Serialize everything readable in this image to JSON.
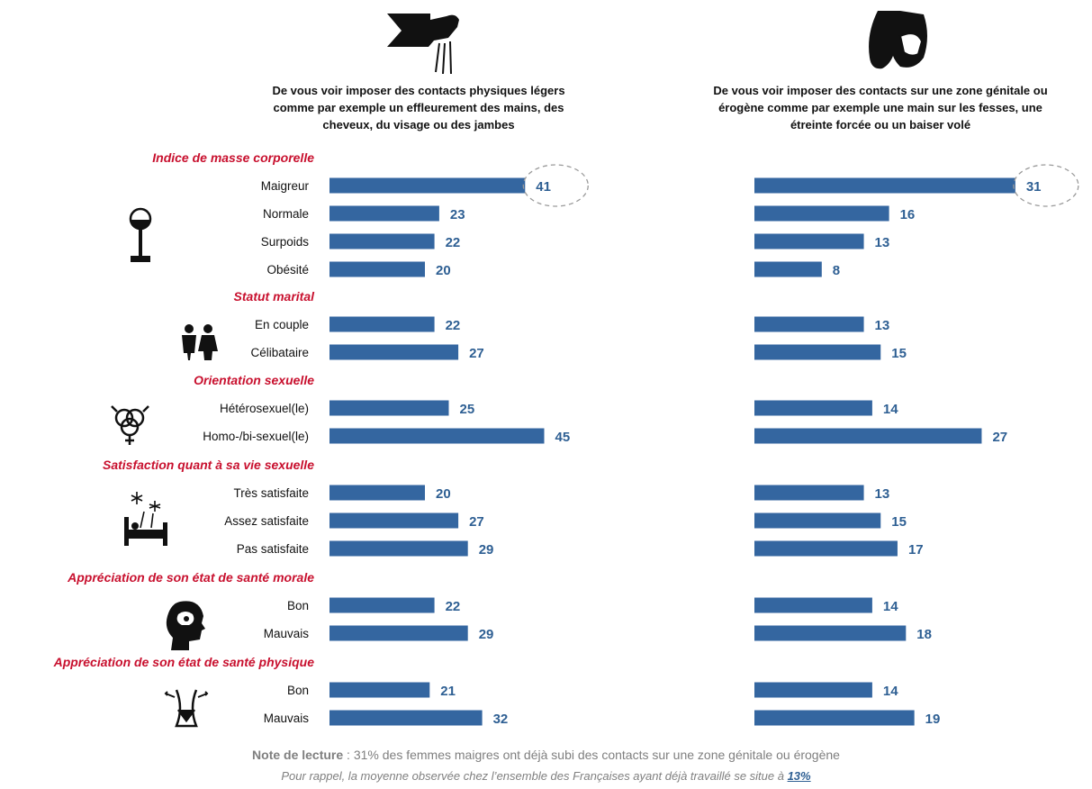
{
  "chart_data": {
    "type": "bar",
    "orientation": "horizontal",
    "panels": [
      {
        "title": [
          "De vous voir imposer des contacts physiques légers",
          "comme par exemple un effleurement des mains, des",
          "cheveux, du visage ou des jambes"
        ],
        "icon": "hand-touch-icon"
      },
      {
        "title": [
          "De vous voir imposer des contacts sur une zone génitale ou",
          "érogène comme par exemple une main sur les fesses, une",
          "étreinte forcée ou un baiser volé"
        ],
        "icon": "buttocks-hand-icon"
      }
    ],
    "groups": [
      {
        "title": "Indice de masse corporelle",
        "icon": "scale-icon",
        "rows": [
          {
            "label": "Maigreur",
            "values": [
              41,
              31
            ],
            "highlight": true
          },
          {
            "label": "Normale",
            "values": [
              23,
              16
            ]
          },
          {
            "label": "Surpoids",
            "values": [
              22,
              13
            ]
          },
          {
            "label": "Obésité",
            "values": [
              20,
              8
            ]
          }
        ]
      },
      {
        "title": "Statut marital",
        "icon": "couple-icon",
        "rows": [
          {
            "label": "En couple",
            "values": [
              22,
              13
            ]
          },
          {
            "label": "Célibataire",
            "values": [
              27,
              15
            ]
          }
        ]
      },
      {
        "title": "Orientation sexuelle",
        "icon": "gender-symbols-icon",
        "rows": [
          {
            "label": "Hétérosexuel(le)",
            "values": [
              25,
              14
            ]
          },
          {
            "label": "Homo-/bi-sexuel(le)",
            "values": [
              45,
              27
            ]
          }
        ]
      },
      {
        "title": "Satisfaction quant à sa vie sexuelle",
        "icon": "bed-fireworks-icon",
        "rows": [
          {
            "label": "Très satisfaite",
            "values": [
              20,
              13
            ]
          },
          {
            "label": "Assez satisfaite",
            "values": [
              27,
              15
            ]
          },
          {
            "label": "Pas satisfaite",
            "values": [
              29,
              17
            ]
          }
        ]
      },
      {
        "title": "Appréciation de son état de santé morale",
        "icon": "head-mind-icon",
        "rows": [
          {
            "label": "Bon",
            "values": [
              22,
              14
            ]
          },
          {
            "label": "Mauvais",
            "values": [
              29,
              18
            ]
          }
        ]
      },
      {
        "title": "Appréciation de son état de santé physique",
        "icon": "body-shape-icon",
        "rows": [
          {
            "label": "Bon",
            "values": [
              21,
              14
            ]
          },
          {
            "label": "Mauvais",
            "values": [
              32,
              19
            ]
          }
        ]
      }
    ],
    "colors": {
      "bar": "#3466a0",
      "value_label": "#2e5f93",
      "group_title": "#c8102e"
    }
  },
  "footer": {
    "note_label": "Note de lecture",
    "note_text": " : 31% des femmes maigres ont déjà subi des contacts sur une zone génitale ou érogène",
    "reminder_text": "Pour rappel, la moyenne observée chez l’ensemble des Françaises ayant déjà travaillé se situe à ",
    "reminder_value": "13%"
  }
}
